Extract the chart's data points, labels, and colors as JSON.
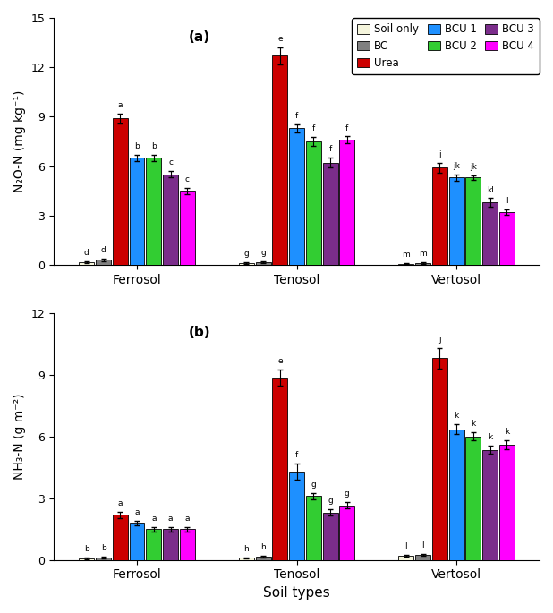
{
  "colors": {
    "Soil only": "#f5f5dc",
    "BC": "#808080",
    "Urea": "#cc0000",
    "BCU 1": "#1e90ff",
    "BCU 2": "#32cd32",
    "BCU 3": "#7b2d8b",
    "BCU 4": "#ff00ff"
  },
  "bar_edge": "#000000",
  "soil_types": [
    "Ferrosol",
    "Tenosol",
    "Vertosol"
  ],
  "treatment_labels": [
    "Soil only",
    "BC",
    "Urea",
    "BCU 1",
    "BCU 2",
    "BCU 3",
    "BCU 4"
  ],
  "panel_a": {
    "title": "(a)",
    "ylabel": "N₂O-N (mg kg⁻¹)",
    "ylim": [
      0,
      15
    ],
    "yticks": [
      0,
      3,
      6,
      9,
      12,
      15
    ],
    "values": {
      "Ferrosol": [
        0.15,
        0.3,
        8.9,
        6.5,
        6.5,
        5.5,
        4.5
      ],
      "Tenosol": [
        0.1,
        0.15,
        12.7,
        8.3,
        7.5,
        6.2,
        7.6
      ],
      "Vertosol": [
        0.08,
        0.12,
        5.9,
        5.3,
        5.3,
        3.8,
        3.2
      ]
    },
    "errors": {
      "Ferrosol": [
        0.05,
        0.1,
        0.3,
        0.2,
        0.2,
        0.2,
        0.2
      ],
      "Tenosol": [
        0.05,
        0.05,
        0.5,
        0.25,
        0.25,
        0.3,
        0.2
      ],
      "Vertosol": [
        0.03,
        0.05,
        0.3,
        0.2,
        0.15,
        0.25,
        0.15
      ]
    },
    "letters": {
      "Ferrosol": [
        "d",
        "d",
        "a",
        "b",
        "b",
        "c",
        "c"
      ],
      "Tenosol": [
        "g",
        "g",
        "e",
        "f",
        "f",
        "f",
        "f"
      ],
      "Vertosol": [
        "m",
        "m",
        "j",
        "jk",
        "jk",
        "kl",
        "l"
      ]
    }
  },
  "panel_b": {
    "title": "(b)",
    "ylabel": "NH₃-N (g m⁻²)",
    "ylim": [
      0,
      12
    ],
    "yticks": [
      0,
      3,
      6,
      9,
      12
    ],
    "values": {
      "Ferrosol": [
        0.08,
        0.12,
        2.2,
        1.8,
        1.5,
        1.5,
        1.5
      ],
      "Tenosol": [
        0.1,
        0.15,
        8.85,
        4.3,
        3.1,
        2.3,
        2.65
      ],
      "Vertosol": [
        0.2,
        0.25,
        9.8,
        6.35,
        6.0,
        5.35,
        5.6
      ]
    },
    "errors": {
      "Ferrosol": [
        0.03,
        0.03,
        0.15,
        0.1,
        0.1,
        0.1,
        0.1
      ],
      "Tenosol": [
        0.04,
        0.04,
        0.4,
        0.4,
        0.15,
        0.15,
        0.15
      ],
      "Vertosol": [
        0.05,
        0.05,
        0.5,
        0.25,
        0.2,
        0.2,
        0.2
      ]
    },
    "letters": {
      "Ferrosol": [
        "b",
        "b",
        "a",
        "a",
        "a",
        "a",
        "a"
      ],
      "Tenosol": [
        "h",
        "h",
        "e",
        "f",
        "g",
        "g",
        "g"
      ],
      "Vertosol": [
        "l",
        "l",
        "j",
        "k",
        "k",
        "k",
        "k"
      ]
    }
  }
}
